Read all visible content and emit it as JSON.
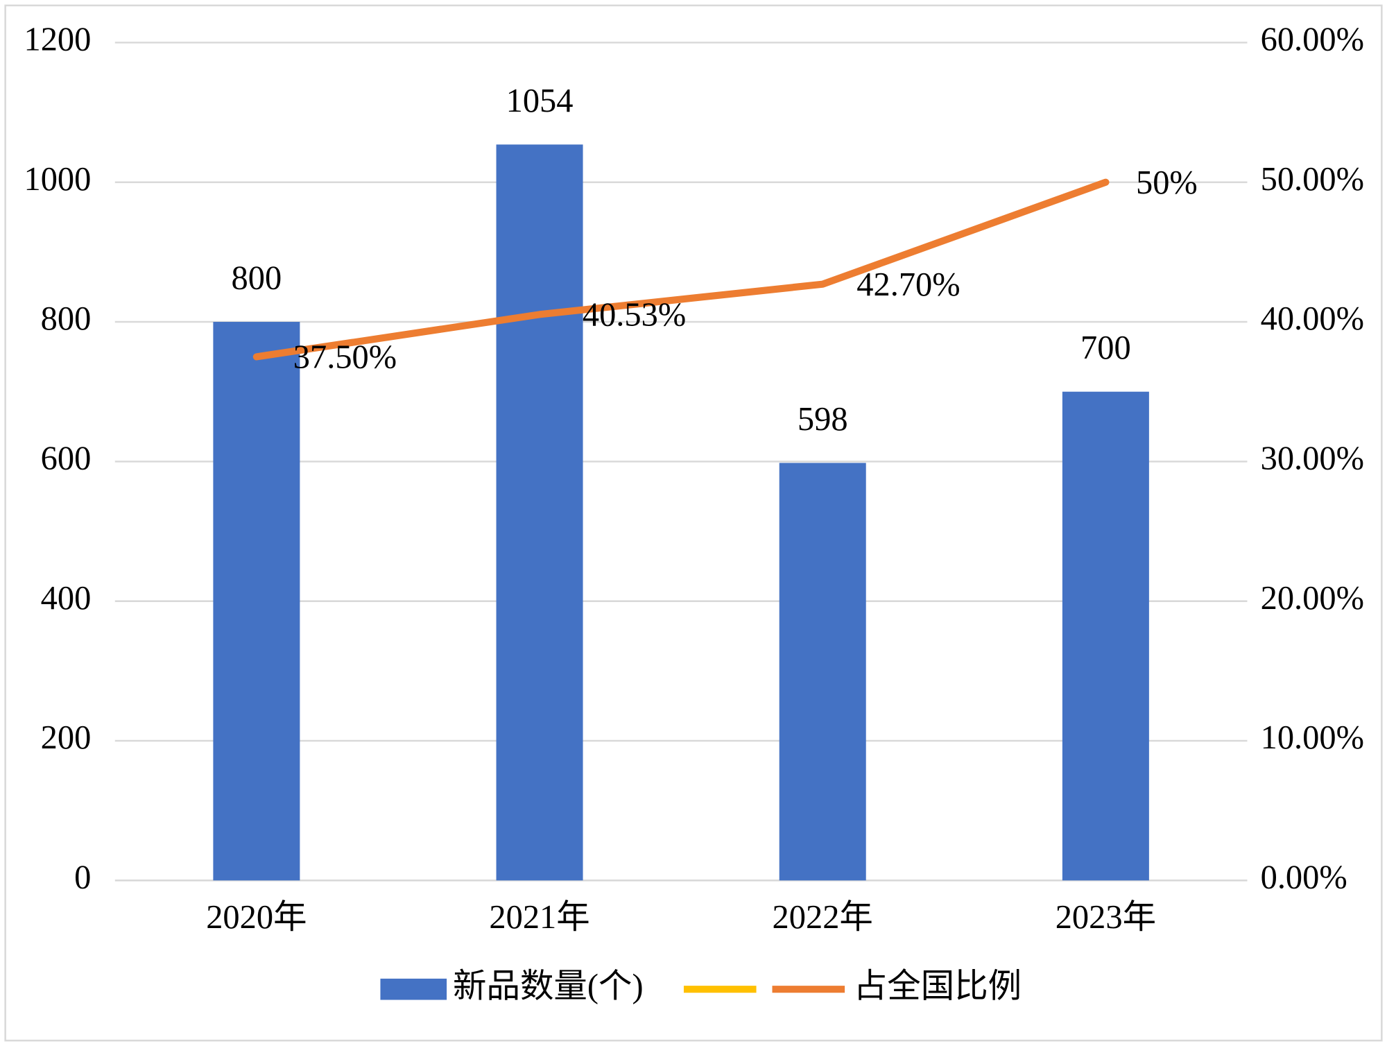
{
  "chart_data": {
    "type": "bar-line",
    "categories": [
      "2020年",
      "2021年",
      "2022年",
      "2023年"
    ],
    "series": [
      {
        "name": "新品数量(个)",
        "type": "bar",
        "color": "#4472c4",
        "values": [
          800,
          1054,
          598,
          700
        ]
      },
      {
        "name": "占全国比例",
        "type": "line",
        "axis": "y2",
        "color": "#ed7d31",
        "values": [
          37.5,
          40.53,
          42.7,
          50
        ],
        "value_labels": [
          "37.50%",
          "40.53%",
          "42.70%",
          "50%"
        ]
      }
    ],
    "ylim": [
      0,
      1200
    ],
    "yticks": [
      0,
      200,
      400,
      600,
      800,
      1000,
      1200
    ],
    "y2lim": [
      0,
      60
    ],
    "y2ticks": [
      {
        "value": 0,
        "label": "0.00%"
      },
      {
        "value": 10,
        "label": "10.00%"
      },
      {
        "value": 20,
        "label": "20.00%"
      },
      {
        "value": 30,
        "label": "30.00%"
      },
      {
        "value": 40,
        "label": "40.00%"
      },
      {
        "value": 50,
        "label": "50.00%"
      },
      {
        "value": 60,
        "label": "60.00%"
      }
    ],
    "grid": true,
    "legend": "bottom"
  }
}
